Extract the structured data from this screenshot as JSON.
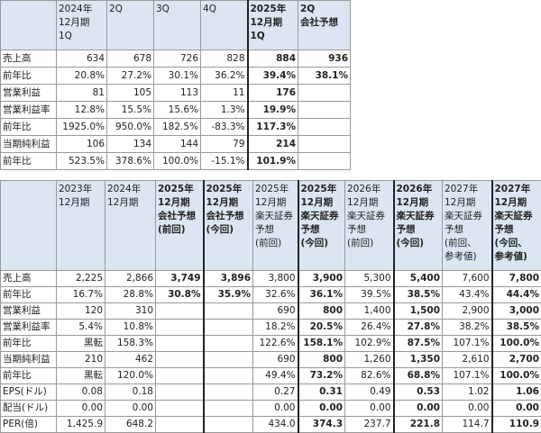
{
  "table1": {
    "header": [
      null,
      [
        "2024年",
        "12月期",
        "1Q"
      ],
      [
        "2Q"
      ],
      [
        "3Q"
      ],
      [
        "4Q"
      ],
      [
        "2025年",
        "12月期",
        "1Q"
      ],
      [
        "2Q",
        "会社予想"
      ]
    ],
    "rows": [
      [
        "売上高",
        "634",
        "678",
        "726",
        "828",
        "884",
        "936"
      ],
      [
        "前年比",
        "20.8%",
        "27.2%",
        "30.1%",
        "36.2%",
        "39.4%",
        "38.1%"
      ],
      [
        "営業利益",
        "81",
        "105",
        "113",
        "11",
        "176",
        null
      ],
      [
        "営業利益率",
        "12.8%",
        "15.5%",
        "15.6%",
        "1.3%",
        "19.9%",
        null
      ],
      [
        "前年比",
        "1925.0%",
        "950.0%",
        "182.5%",
        "-83.3%",
        "117.3%",
        null
      ],
      [
        "当期純利益",
        "106",
        "134",
        "144",
        "79",
        "214",
        null
      ],
      [
        "前年比",
        "523.5%",
        "378.6%",
        "100.0%",
        "-15.1%",
        "101.9%",
        null
      ]
    ]
  },
  "table2": {
    "header": [
      null,
      [
        "2023年",
        "12月期"
      ],
      [
        "2024年",
        "12月期"
      ],
      [
        "2025年",
        "12月期",
        "会社予想",
        "(前回)"
      ],
      [
        "2025年",
        "12月期",
        "会社予想",
        "(今回)"
      ],
      [
        "2025年",
        "12月期",
        "楽天証券",
        "予想",
        "(前回)"
      ],
      [
        "2025年",
        "12月期",
        "楽天証券",
        "予想",
        "(今回)"
      ],
      [
        "2026年",
        "12月期",
        "楽天証券",
        "予想",
        "(前回)"
      ],
      [
        "2026年",
        "12月期",
        "楽天証券",
        "予想",
        "(今回)"
      ],
      [
        "2027年",
        "12月期",
        "楽天証券",
        "予想",
        "(前回、",
        "参考値)"
      ],
      [
        "2027年",
        "12月期",
        "楽天証券",
        "予想",
        "(今回、",
        "参考値)"
      ]
    ],
    "rows": [
      [
        "売上高",
        "2,225",
        "2,866",
        "3,749",
        "3,896",
        "3,800",
        "3,900",
        "5,300",
        "5,400",
        "7,600",
        "7,800"
      ],
      [
        "前年比",
        "16.7%",
        "28.8%",
        "30.8%",
        "35.9%",
        "32.6%",
        "36.1%",
        "39.5%",
        "38.5%",
        "43.4%",
        "44.4%"
      ],
      [
        "営業利益",
        "120",
        "310",
        null,
        null,
        "690",
        "800",
        "1,400",
        "1,500",
        "2,900",
        "3,000"
      ],
      [
        "営業利益率",
        "5.4%",
        "10.8%",
        null,
        null,
        "18.2%",
        "20.5%",
        "26.4%",
        "27.8%",
        "38.2%",
        "38.5%"
      ],
      [
        "前年比",
        "黒転",
        "158.3%",
        null,
        null,
        "122.6%",
        "158.1%",
        "102.9%",
        "87.5%",
        "107.1%",
        "100.0%"
      ],
      [
        "当期純利益",
        "210",
        "462",
        null,
        null,
        "690",
        "800",
        "1,260",
        "1,350",
        "2,610",
        "2,700"
      ],
      [
        "前年比",
        "黒転",
        "120.0%",
        null,
        null,
        "49.4%",
        "73.2%",
        "82.6%",
        "68.8%",
        "107.1%",
        "100.0%"
      ],
      [
        "EPS(ドル)",
        "0.08",
        "0.18",
        null,
        null,
        "0.27",
        "0.31",
        "0.49",
        "0.53",
        "1.02",
        "1.06"
      ],
      [
        "配当(ドル)",
        "0.00",
        "0.00",
        null,
        null,
        "0.00",
        "0.00",
        "0.00",
        "0.00",
        "0.00",
        "0.00"
      ],
      [
        "PER(倍)",
        "1,425.9",
        "648.2",
        null,
        null,
        "434.0",
        "374.3",
        "237.7",
        "221.8",
        "114.7",
        "110.9"
      ]
    ]
  }
}
